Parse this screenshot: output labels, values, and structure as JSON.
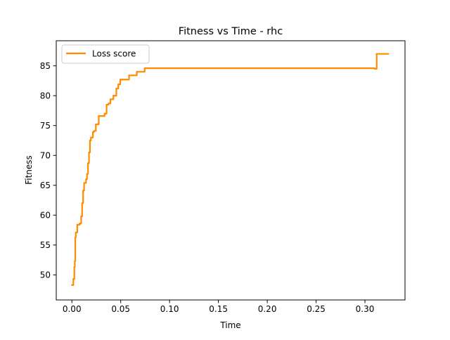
{
  "chart_data": {
    "type": "line",
    "title": "Fitness vs Time - rhc",
    "xlabel": "Time",
    "ylabel": "Fitness",
    "xlim": [
      -0.016,
      0.341
    ],
    "ylim": [
      45.8,
      89.2
    ],
    "xticks": [
      0.0,
      0.05,
      0.1,
      0.15,
      0.2,
      0.25,
      0.3
    ],
    "xtick_labels": [
      "0.00",
      "0.05",
      "0.10",
      "0.15",
      "0.20",
      "0.25",
      "0.30"
    ],
    "yticks": [
      50,
      55,
      60,
      65,
      70,
      75,
      80,
      85
    ],
    "ytick_labels": [
      "50",
      "55",
      "60",
      "65",
      "70",
      "75",
      "80",
      "85"
    ],
    "grid": false,
    "legend_position": "upper-left",
    "series": [
      {
        "name": "Loss score",
        "color": "#ff8c00",
        "step": true,
        "x": [
          0.0,
          0.0015,
          0.0025,
          0.003,
          0.0035,
          0.004,
          0.0055,
          0.008,
          0.0095,
          0.0105,
          0.0115,
          0.0125,
          0.0145,
          0.0155,
          0.0165,
          0.0175,
          0.0185,
          0.0195,
          0.0215,
          0.0225,
          0.0245,
          0.0275,
          0.0335,
          0.0355,
          0.0375,
          0.0395,
          0.0425,
          0.0455,
          0.0475,
          0.0495,
          0.0515,
          0.0525,
          0.0585,
          0.0625,
          0.0665,
          0.0745,
          0.288,
          0.31,
          0.312,
          0.324
        ],
        "values": [
          48.3,
          49.3,
          51.3,
          52.3,
          56.3,
          57.1,
          58.4,
          58.6,
          59.8,
          62.0,
          64.1,
          65.4,
          66.0,
          66.9,
          68.7,
          70.5,
          72.5,
          73.0,
          73.9,
          74.1,
          75.2,
          76.6,
          77.0,
          78.5,
          78.7,
          79.4,
          80.0,
          81.2,
          81.9,
          82.7,
          82.7,
          82.7,
          83.4,
          83.4,
          84.0,
          84.6,
          84.6,
          84.5,
          87.0,
          87.0
        ]
      }
    ]
  }
}
